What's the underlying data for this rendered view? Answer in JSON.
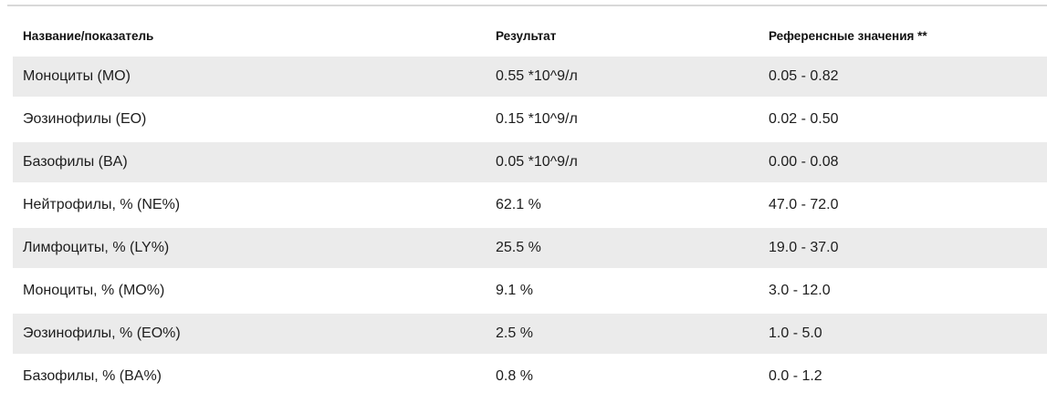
{
  "page": {
    "background_color": "#ffffff",
    "divider_color": "#d8d8d8",
    "stripe_color": "#ebebeb",
    "text_color": "#1d1d1d"
  },
  "table": {
    "columns": [
      {
        "label": "Название/показатель"
      },
      {
        "label": "Результат"
      },
      {
        "label": "Референсные значения **"
      }
    ],
    "rows": [
      {
        "name": "Моноциты (MO)",
        "result": "0.55 *10^9/л",
        "reference": "0.05 - 0.82"
      },
      {
        "name": "Эозинофилы (EO)",
        "result": "0.15 *10^9/л",
        "reference": "0.02 - 0.50"
      },
      {
        "name": "Базофилы (BA)",
        "result": "0.05 *10^9/л",
        "reference": "0.00 - 0.08"
      },
      {
        "name": "Нейтрофилы, % (NE%)",
        "result": "62.1 %",
        "reference": "47.0 - 72.0"
      },
      {
        "name": "Лимфоциты, % (LY%)",
        "result": "25.5 %",
        "reference": "19.0 - 37.0"
      },
      {
        "name": "Моноциты, % (MO%)",
        "result": "9.1 %",
        "reference": "3.0 - 12.0"
      },
      {
        "name": "Эозинофилы, % (EO%)",
        "result": "2.5 %",
        "reference": "1.0 - 5.0"
      },
      {
        "name": "Базофилы, % (BA%)",
        "result": "0.8 %",
        "reference": "0.0 - 1.2"
      }
    ]
  }
}
